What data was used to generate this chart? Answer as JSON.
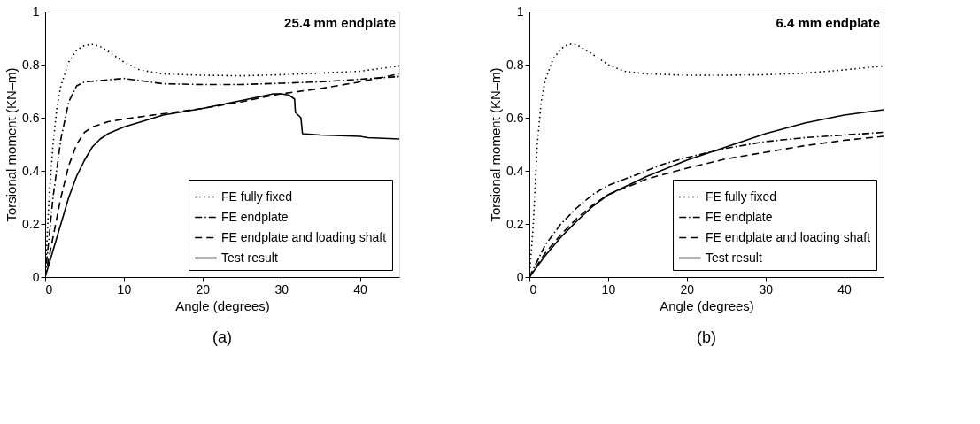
{
  "chart_data": [
    {
      "type": "line",
      "xlabel": "Angle (degrees)",
      "ylabel": "Torsional moment (KN–m)",
      "annotations": [
        "25.4 mm endplate",
        "(a)"
      ],
      "xlim": [
        0,
        45
      ],
      "ylim": [
        0,
        1
      ],
      "xticks": [
        0,
        10,
        20,
        30,
        40
      ],
      "yticks": [
        0,
        0.2,
        0.4,
        0.6,
        0.8,
        1
      ],
      "grid": false,
      "legend": "bottom right",
      "series": [
        {
          "name": "FE fully fixed",
          "color": "#000000",
          "line_style": "dotted",
          "x": [
            0,
            0.5,
            1,
            1.5,
            2,
            3,
            4,
            5,
            6,
            7,
            8,
            10,
            12,
            15,
            20,
            25,
            30,
            35,
            40,
            45
          ],
          "values": [
            0,
            0.3,
            0.5,
            0.64,
            0.72,
            0.81,
            0.855,
            0.872,
            0.876,
            0.868,
            0.85,
            0.81,
            0.78,
            0.765,
            0.76,
            0.758,
            0.762,
            0.768,
            0.775,
            0.795
          ]
        },
        {
          "name": "FE endplate",
          "color": "#000000",
          "line_style": "dashdot",
          "x": [
            0,
            1,
            2,
            3,
            4,
            5,
            7,
            10,
            12,
            15,
            20,
            25,
            30,
            35,
            40,
            45
          ],
          "values": [
            0,
            0.3,
            0.52,
            0.66,
            0.72,
            0.735,
            0.74,
            0.748,
            0.74,
            0.728,
            0.725,
            0.725,
            0.73,
            0.735,
            0.745,
            0.755
          ]
        },
        {
          "name": "FE endplate and loading shaft",
          "color": "#000000",
          "line_style": "dashed",
          "x": [
            0,
            1,
            2,
            3,
            4,
            5,
            6,
            8,
            10,
            15,
            20,
            25,
            29,
            30,
            35,
            40,
            45
          ],
          "values": [
            0,
            0.15,
            0.3,
            0.42,
            0.5,
            0.545,
            0.565,
            0.585,
            0.595,
            0.615,
            0.635,
            0.66,
            0.685,
            0.69,
            0.71,
            0.735,
            0.765
          ]
        },
        {
          "name": "Test result",
          "color": "#000000",
          "line_style": "solid",
          "x": [
            0,
            1,
            2,
            3,
            4,
            5,
            6,
            7,
            8,
            10,
            15,
            20,
            25,
            29,
            30,
            31,
            31.7,
            31.8,
            32.5,
            32.7,
            35,
            40,
            41,
            45
          ],
          "values": [
            0,
            0.1,
            0.2,
            0.3,
            0.38,
            0.44,
            0.49,
            0.52,
            0.54,
            0.565,
            0.61,
            0.635,
            0.665,
            0.69,
            0.69,
            0.685,
            0.67,
            0.62,
            0.6,
            0.54,
            0.535,
            0.53,
            0.525,
            0.52
          ]
        }
      ]
    },
    {
      "type": "line",
      "xlabel": "Angle (degrees)",
      "ylabel": "Torsional moment (KN–m)",
      "annotations": [
        "6.4 mm endplate",
        "(b)"
      ],
      "xlim": [
        0,
        45
      ],
      "ylim": [
        0,
        1
      ],
      "xticks": [
        0,
        10,
        20,
        30,
        40
      ],
      "yticks": [
        0,
        0.2,
        0.4,
        0.6,
        0.8,
        1
      ],
      "grid": false,
      "legend": "bottom right",
      "series": [
        {
          "name": "FE fully fixed",
          "color": "#000000",
          "line_style": "dotted",
          "x": [
            0,
            0.5,
            1,
            1.5,
            2,
            3,
            4,
            5,
            6,
            8,
            10,
            12,
            15,
            20,
            25,
            30,
            35,
            40,
            45
          ],
          "values": [
            0,
            0.2,
            0.5,
            0.66,
            0.74,
            0.82,
            0.86,
            0.877,
            0.875,
            0.84,
            0.8,
            0.775,
            0.765,
            0.76,
            0.76,
            0.762,
            0.768,
            0.78,
            0.795
          ]
        },
        {
          "name": "FE endplate",
          "color": "#000000",
          "line_style": "dashdot",
          "x": [
            0,
            2,
            4,
            6,
            8,
            10,
            14,
            17,
            20,
            25,
            30,
            35,
            40,
            45
          ],
          "values": [
            0,
            0.12,
            0.2,
            0.26,
            0.31,
            0.345,
            0.39,
            0.425,
            0.45,
            0.485,
            0.51,
            0.525,
            0.535,
            0.545
          ]
        },
        {
          "name": "FE endplate and loading shaft",
          "color": "#000000",
          "line_style": "dashed",
          "x": [
            0,
            2,
            4,
            6,
            8,
            10,
            15,
            20,
            25,
            30,
            35,
            40,
            45
          ],
          "values": [
            0,
            0.09,
            0.16,
            0.22,
            0.27,
            0.31,
            0.37,
            0.41,
            0.445,
            0.47,
            0.495,
            0.515,
            0.53
          ]
        },
        {
          "name": "Test result",
          "color": "#000000",
          "line_style": "solid",
          "x": [
            0,
            2,
            4,
            6,
            8,
            10,
            15,
            20,
            25,
            30,
            35,
            40,
            45
          ],
          "values": [
            0,
            0.08,
            0.15,
            0.21,
            0.265,
            0.31,
            0.38,
            0.44,
            0.49,
            0.54,
            0.58,
            0.61,
            0.63
          ]
        }
      ]
    }
  ]
}
